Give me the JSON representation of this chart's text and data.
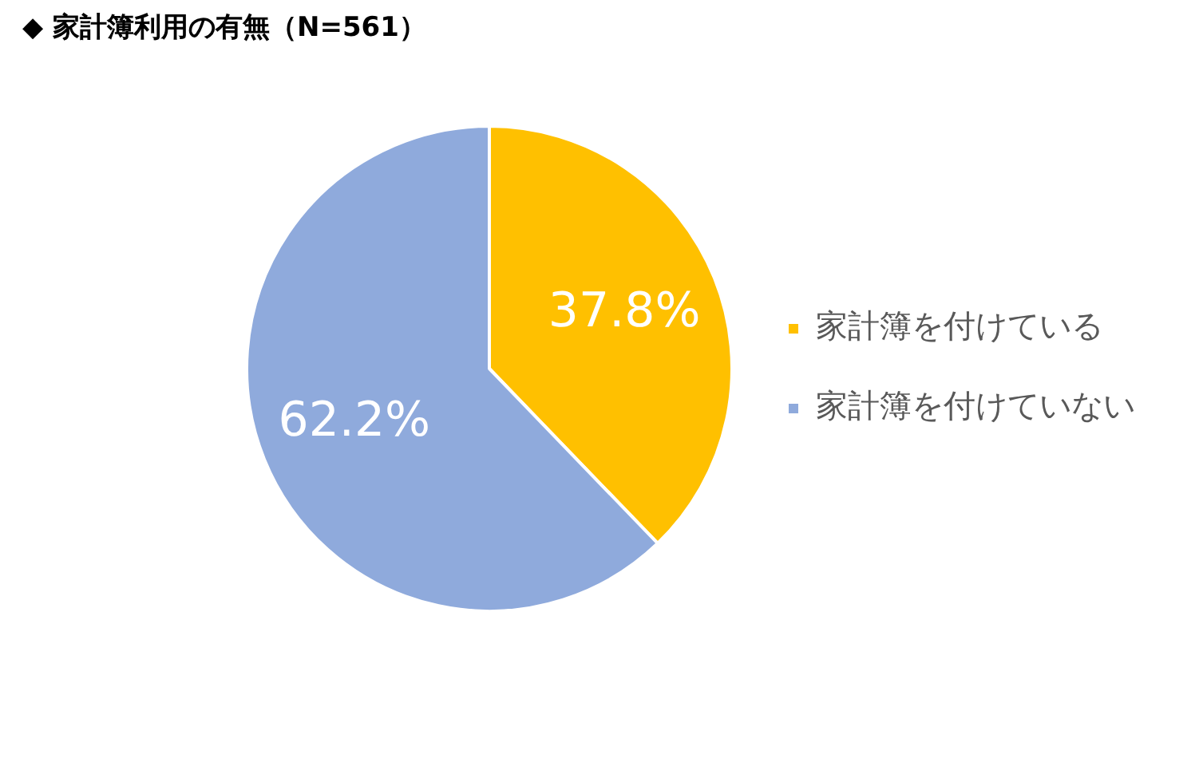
{
  "chart_data": {
    "type": "pie",
    "title": "◆ 家計簿利用の有無（N=561）",
    "categories": [
      "家計簿を付けている",
      "家計簿を付けていない"
    ],
    "values": [
      37.8,
      62.2
    ],
    "colors": [
      "#ffc000",
      "#8faadc"
    ],
    "value_labels": [
      "37.8%",
      "62.2%"
    ],
    "legend": "right"
  }
}
